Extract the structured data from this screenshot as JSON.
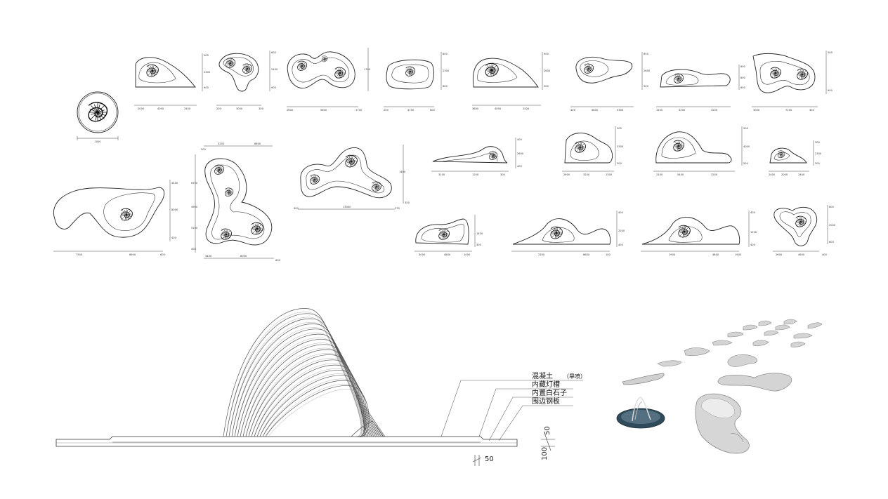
{
  "legend": {
    "items": [
      {
        "key": "concrete",
        "label": "混凝土",
        "note": "（旱喷）"
      },
      {
        "key": "light_slot",
        "label": "内藏灯槽"
      },
      {
        "key": "white_stone",
        "label": "内置白石子"
      },
      {
        "key": "steel_edge",
        "label": "围边钢板"
      }
    ]
  },
  "section_dims": {
    "horizontal": "50",
    "vertical_a": "50",
    "vertical_b": "100"
  },
  "plan_dims": {
    "round": [
      "1000"
    ],
    "r1": [
      [
        "2000",
        "4000",
        "2400",
        "900",
        "2400",
        "900"
      ],
      [
        "200",
        "3000",
        "300",
        "600",
        "2400",
        "900"
      ],
      [
        "2600",
        "5600",
        "1700",
        "1700"
      ],
      [
        "200",
        "4700",
        "600",
        "600",
        "2300",
        "600"
      ],
      [
        "3600",
        "4000",
        "2400",
        "900",
        "2600",
        "900"
      ],
      [
        "400",
        "4600",
        "3300",
        "650",
        "2600",
        "900"
      ],
      [
        "1500",
        "4200",
        "3200",
        "600",
        "800",
        "600"
      ],
      [
        "3000",
        "7100",
        "300",
        "500",
        "900"
      ]
    ],
    "r2": [
      [
        "7500",
        "6600",
        "600",
        "4400",
        "8000",
        "400"
      ],
      [
        "3200",
        "6800",
        "300",
        "6700",
        "4900",
        "5100",
        "400",
        "3400",
        "1900",
        "6000",
        "600"
      ],
      [
        "13000",
        "400",
        "370",
        "1400",
        "350"
      ],
      [
        "3100",
        "1200",
        "300",
        "400",
        "2600",
        "400"
      ],
      [
        "2600",
        "3200",
        "1300",
        "300",
        "3300",
        "300"
      ],
      [
        "2100",
        "5400",
        "3200",
        "500",
        "4000",
        "500"
      ],
      [
        "2400",
        "2000",
        "2400",
        "300",
        "2300",
        "300"
      ],
      [
        "3000",
        "4800",
        "1000",
        "1400",
        "300"
      ],
      [
        "2300",
        "6600",
        "100",
        "400",
        "2200",
        "400"
      ],
      [
        "1900",
        "4800",
        "1900",
        "400",
        "1200",
        "400"
      ],
      [
        "2600",
        "4600",
        "400",
        "800",
        "2000",
        "600"
      ]
    ]
  }
}
